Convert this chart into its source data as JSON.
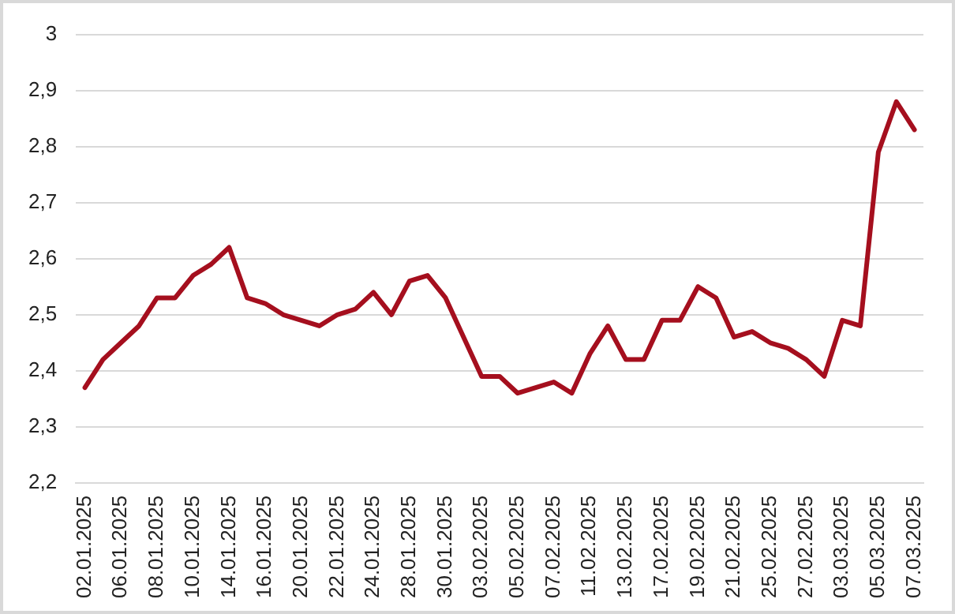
{
  "chart_data": {
    "type": "line",
    "categories": [
      "02.01.2025",
      null,
      "06.01.2025",
      null,
      "08.01.2025",
      null,
      "10.01.2025",
      null,
      "14.01.2025",
      null,
      "16.01.2025",
      null,
      "20.01.2025",
      null,
      "22.01.2025",
      null,
      "24.01.2025",
      null,
      "28.01.2025",
      null,
      "30.01.2025",
      null,
      "03.02.2025",
      null,
      "05.02.2025",
      null,
      "07.02.2025",
      null,
      "11.02.2025",
      null,
      "13.02.2025",
      null,
      "17.02.2025",
      null,
      "19.02.2025",
      null,
      "21.02.2025",
      null,
      "25.02.2025",
      null,
      "27.02.2025",
      null,
      "03.03.2025",
      null,
      "05.03.2025",
      null,
      "07.03.2025"
    ],
    "series": [
      {
        "color": "#a50f1e",
        "values": [
          2.37,
          2.42,
          2.45,
          2.48,
          2.53,
          2.53,
          2.57,
          2.59,
          2.62,
          2.53,
          2.52,
          2.5,
          2.49,
          2.48,
          2.5,
          2.51,
          2.54,
          2.5,
          2.56,
          2.57,
          2.53,
          2.46,
          2.39,
          2.39,
          2.36,
          2.37,
          2.38,
          2.36,
          2.43,
          2.48,
          2.42,
          2.42,
          2.49,
          2.49,
          2.55,
          2.53,
          2.46,
          2.47,
          2.45,
          2.44,
          2.42,
          2.39,
          2.49,
          2.48,
          2.79,
          2.88,
          2.83
        ]
      }
    ],
    "ylim": [
      2.2,
      3
    ],
    "yticks": [
      {
        "value": 2.2,
        "label": "2,2"
      },
      {
        "value": 2.3,
        "label": "2,3"
      },
      {
        "value": 2.4,
        "label": "2,4"
      },
      {
        "value": 2.5,
        "label": "2,5"
      },
      {
        "value": 2.6,
        "label": "2,6"
      },
      {
        "value": 2.7,
        "label": "2,7"
      },
      {
        "value": 2.8,
        "label": "2,8"
      },
      {
        "value": 2.9,
        "label": "2,9"
      },
      {
        "value": 3,
        "label": "3"
      }
    ],
    "grid": "y",
    "legend": false,
    "marker": "none",
    "line_style": "solid"
  }
}
